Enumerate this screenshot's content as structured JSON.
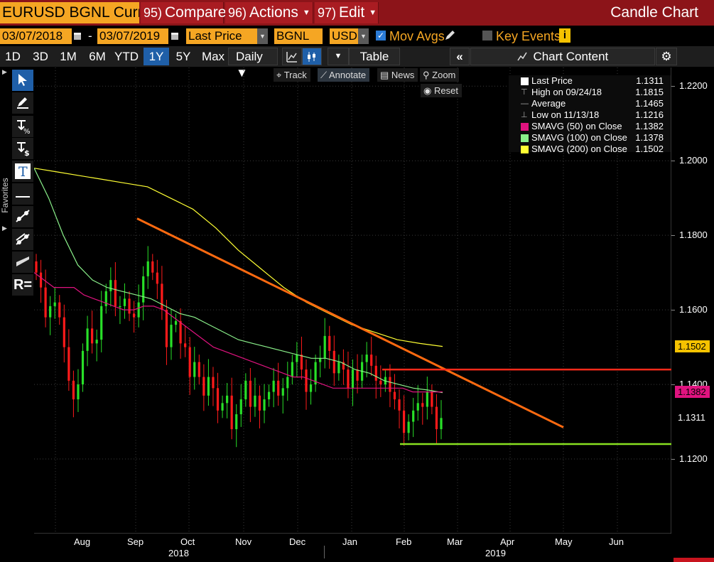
{
  "title_bar": {
    "ticker": "EURUSD BGNL Curnc",
    "compare": {
      "num": "95)",
      "label": "Compare"
    },
    "actions": {
      "num": "96)",
      "label": "Actions"
    },
    "edit": {
      "num": "97)",
      "label": "Edit"
    },
    "chart_type": "Candle Chart"
  },
  "controls": {
    "start_date": "03/07/2018",
    "separator": "-",
    "end_date": "03/07/2019",
    "field": "Last Price",
    "source": "BGNL",
    "currency": "USD",
    "mov_avgs": {
      "label": "Mov Avgs",
      "checked": true
    },
    "key_events": {
      "label": "Key Events",
      "checked": false
    },
    "info_icon": "i"
  },
  "periods": [
    "1D",
    "3D",
    "1M",
    "6M",
    "YTD",
    "1Y",
    "5Y",
    "Max"
  ],
  "selected_period": "1Y",
  "frequency": "Daily",
  "table_label": "Table",
  "chart_content_label": "Chart Content",
  "chart_tools": {
    "track": "Track",
    "annotate": "Annotate",
    "news": "News",
    "zoom": "Zoom",
    "reset": "Reset"
  },
  "favorites_label": "Favorites",
  "left_tools": [
    "pointer-icon",
    "pen-icon",
    "percent-icon",
    "dollar-icon",
    "text-icon",
    "horizontal-line-icon",
    "trend-line-icon",
    "channel-line-icon",
    "rectangle-icon",
    "R="
  ],
  "legend": [
    {
      "name": "Last Price",
      "value": "1.1311",
      "color": "#ffffff"
    },
    {
      "name": "High on 09/24/18",
      "value": "1.1815",
      "color": ""
    },
    {
      "name": "Average",
      "value": "1.1465",
      "color": ""
    },
    {
      "name": "Low on 11/13/18",
      "value": "1.1216",
      "color": ""
    },
    {
      "name": "SMAVG (50)  on Close",
      "value": "1.1382",
      "color": "#e0137f"
    },
    {
      "name": "SMAVG (100)  on Close",
      "value": "1.1378",
      "color": "#8af08a"
    },
    {
      "name": "SMAVG (200)  on Close",
      "value": "1.1502",
      "color": "#ffff33"
    }
  ],
  "y_axis_labels": [
    "1.2200",
    "1.2000",
    "1.1800",
    "1.1600",
    "1.1400",
    "1.1200"
  ],
  "price_tags": [
    {
      "value": "1.1502",
      "color": "#f5c200"
    },
    {
      "value": "1.1382",
      "color": "#e0137f"
    },
    {
      "value": "1.1311",
      "color": "#000000"
    }
  ],
  "x_axis_labels": [
    "Aug",
    "Sep",
    "Oct",
    "Nov",
    "Dec",
    "Jan",
    "Feb",
    "Mar",
    "Apr",
    "May",
    "Jun"
  ],
  "x_axis_years": [
    "2018",
    "2019"
  ],
  "colors": {
    "accent_orange": "#f5a623",
    "title_red": "#8c1419",
    "trendline": "#ff6a10",
    "resistance": "#ff2a1a",
    "support": "#88e020"
  },
  "chart_data": {
    "type": "candlestick",
    "title": "",
    "ylim": [
      1.1,
      1.225
    ],
    "y_ticks": [
      1.12,
      1.14,
      1.16,
      1.18,
      1.2,
      1.22
    ],
    "x_categories": [
      "Aug",
      "Sep",
      "Oct",
      "Nov",
      "Dec",
      "Jan",
      "Feb",
      "Mar",
      "Apr",
      "May",
      "Jun"
    ],
    "close_series": [
      1.17,
      1.166,
      1.158,
      1.161,
      1.162,
      1.158,
      1.15,
      1.141,
      1.136,
      1.14,
      1.149,
      1.155,
      1.151,
      1.152,
      1.161,
      1.165,
      1.168,
      1.161,
      1.161,
      1.163,
      1.159,
      1.158,
      1.162,
      1.169,
      1.173,
      1.17,
      1.167,
      1.16,
      1.15,
      1.156,
      1.157,
      1.151,
      1.15,
      1.142,
      1.146,
      1.142,
      1.137,
      1.142,
      1.139,
      1.133,
      1.135,
      1.137,
      1.128,
      1.132,
      1.136,
      1.141,
      1.134,
      1.137,
      1.133,
      1.136,
      1.138,
      1.141,
      1.137,
      1.139,
      1.142,
      1.146,
      1.148,
      1.144,
      1.138,
      1.14,
      1.146,
      1.147,
      1.153,
      1.149,
      1.143,
      1.146,
      1.144,
      1.139,
      1.144,
      1.141,
      1.146,
      1.148,
      1.145,
      1.141,
      1.14,
      1.142,
      1.138,
      1.136,
      1.133,
      1.127,
      1.13,
      1.133,
      1.135,
      1.134,
      1.138,
      1.134,
      1.128,
      1.131
    ],
    "sma_50": [
      1.17,
      1.168,
      1.166,
      1.166,
      1.166,
      1.164,
      1.163,
      1.162,
      1.161,
      1.16,
      1.16,
      1.161,
      1.161,
      1.16,
      1.158,
      1.156,
      1.154,
      1.152,
      1.15,
      1.149,
      1.148,
      1.147,
      1.146,
      1.145,
      1.144,
      1.143,
      1.142,
      1.142,
      1.141,
      1.14,
      1.139,
      1.139,
      1.139,
      1.139,
      1.139,
      1.139,
      1.139,
      1.139,
      1.138,
      1.138,
      1.138,
      1.138
    ],
    "sma_100": [
      1.198,
      1.19,
      1.18,
      1.172,
      1.168,
      1.166,
      1.165,
      1.164,
      1.163,
      1.161,
      1.159,
      1.158,
      1.156,
      1.154,
      1.152,
      1.151,
      1.15,
      1.149,
      1.148,
      1.147,
      1.147,
      1.146,
      1.144,
      1.143,
      1.141,
      1.14,
      1.139,
      1.1385,
      1.1378
    ],
    "sma_200": [
      1.198,
      1.197,
      1.196,
      1.195,
      1.194,
      1.193,
      1.19,
      1.187,
      1.182,
      1.176,
      1.171,
      1.166,
      1.162,
      1.159,
      1.156,
      1.154,
      1.152,
      1.151,
      1.1502
    ],
    "last_price": 1.1311,
    "high": 1.1815,
    "average": 1.1465,
    "low": 1.1216,
    "resistance_level": 1.144,
    "support_level": 1.124
  }
}
